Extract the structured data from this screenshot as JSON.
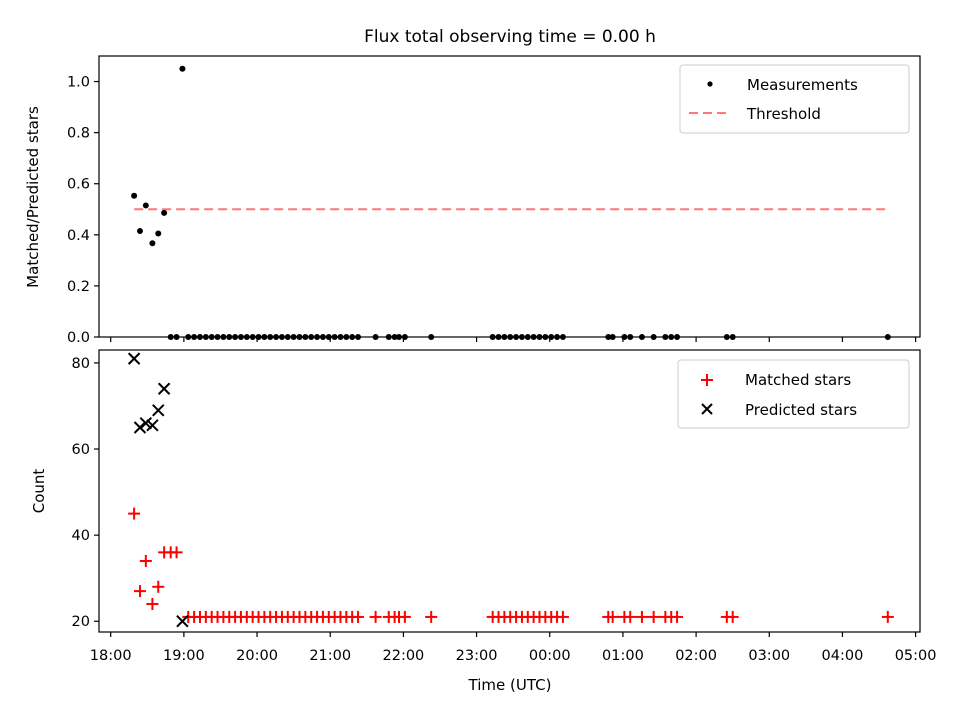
{
  "chart_data": [
    {
      "type": "scatter",
      "title": "Flux total observing time = 0.00 h",
      "xlabel": "",
      "ylabel": "Matched/Predicted stars",
      "ylim": [
        0,
        1.1
      ],
      "yticks": [
        0.0,
        0.2,
        0.4,
        0.6,
        0.8,
        1.0
      ],
      "ytick_labels": [
        "0.0",
        "0.2",
        "0.4",
        "0.6",
        "0.8",
        "1.0"
      ],
      "x_unit": "hours since 18:00 UTC",
      "legend": {
        "position": "top-right",
        "entries": [
          {
            "label": "Measurements",
            "marker": "dot",
            "color": "#000000"
          },
          {
            "label": "Threshold",
            "marker": "dashed-line",
            "color": "#ff7777"
          }
        ]
      },
      "threshold": {
        "y": 0.5,
        "x_start": 0.32,
        "x_end": 10.62,
        "color": "#ff7777"
      },
      "measurements": [
        {
          "x": 0.32,
          "y": 0.553
        },
        {
          "x": 0.4,
          "y": 0.415
        },
        {
          "x": 0.48,
          "y": 0.515
        },
        {
          "x": 0.57,
          "y": 0.367
        },
        {
          "x": 0.65,
          "y": 0.405
        },
        {
          "x": 0.73,
          "y": 0.486
        },
        {
          "x": 0.98,
          "y": 1.05
        }
      ],
      "zero_points_x": [
        0.82,
        0.9,
        1.06,
        1.14,
        1.22,
        1.3,
        1.38,
        1.46,
        1.54,
        1.62,
        1.7,
        1.78,
        1.86,
        1.94,
        2.02,
        2.1,
        2.18,
        2.26,
        2.34,
        2.42,
        2.5,
        2.58,
        2.66,
        2.74,
        2.82,
        2.9,
        2.98,
        3.06,
        3.14,
        3.22,
        3.3,
        3.38,
        3.62,
        3.8,
        3.88,
        3.94,
        4.02,
        4.38,
        5.22,
        5.3,
        5.38,
        5.46,
        5.54,
        5.62,
        5.7,
        5.78,
        5.86,
        5.94,
        6.02,
        6.1,
        6.18,
        6.8,
        6.86,
        7.02,
        7.1,
        7.26,
        7.42,
        7.58,
        7.66,
        7.74,
        8.42,
        8.5,
        10.62
      ]
    },
    {
      "type": "scatter",
      "title": "",
      "xlabel": "Time (UTC)",
      "ylabel": "Count",
      "ylim": [
        17.5,
        83
      ],
      "xlim": [
        -0.16,
        11.06
      ],
      "yticks": [
        20,
        40,
        60,
        80
      ],
      "ytick_labels": [
        "20",
        "40",
        "60",
        "80"
      ],
      "xticks": [
        0,
        1,
        2,
        3,
        4,
        5,
        6,
        7,
        8,
        9,
        10,
        11
      ],
      "xtick_labels": [
        "18:00",
        "19:00",
        "20:00",
        "21:00",
        "22:00",
        "23:00",
        "00:00",
        "01:00",
        "02:00",
        "03:00",
        "04:00",
        "05:00"
      ],
      "legend": {
        "position": "top-right",
        "entries": [
          {
            "label": "Matched stars",
            "marker": "plus",
            "color": "#ff0000"
          },
          {
            "label": "Predicted stars",
            "marker": "x",
            "color": "#000000"
          }
        ]
      },
      "matched": [
        {
          "x": 0.32,
          "y": 45
        },
        {
          "x": 0.4,
          "y": 27
        },
        {
          "x": 0.48,
          "y": 34
        },
        {
          "x": 0.57,
          "y": 24
        },
        {
          "x": 0.65,
          "y": 28
        },
        {
          "x": 0.73,
          "y": 36
        },
        {
          "x": 0.82,
          "y": 36
        },
        {
          "x": 0.9,
          "y": 36
        }
      ],
      "matched_baseline_y": 21,
      "matched_baseline_x": [
        1.06,
        1.14,
        1.22,
        1.3,
        1.38,
        1.46,
        1.54,
        1.62,
        1.7,
        1.78,
        1.86,
        1.94,
        2.02,
        2.1,
        2.18,
        2.26,
        2.34,
        2.42,
        2.5,
        2.58,
        2.66,
        2.74,
        2.82,
        2.9,
        2.98,
        3.06,
        3.14,
        3.22,
        3.3,
        3.38,
        3.62,
        3.8,
        3.88,
        3.94,
        4.02,
        4.38,
        5.22,
        5.3,
        5.38,
        5.46,
        5.54,
        5.62,
        5.7,
        5.78,
        5.86,
        5.94,
        6.02,
        6.1,
        6.18,
        6.8,
        6.86,
        7.02,
        7.1,
        7.26,
        7.42,
        7.58,
        7.66,
        7.74,
        8.42,
        8.5,
        10.62
      ],
      "predicted": [
        {
          "x": 0.32,
          "y": 81
        },
        {
          "x": 0.4,
          "y": 65
        },
        {
          "x": 0.48,
          "y": 66
        },
        {
          "x": 0.57,
          "y": 65.5
        },
        {
          "x": 0.65,
          "y": 69
        },
        {
          "x": 0.73,
          "y": 74
        },
        {
          "x": 0.98,
          "y": 20
        }
      ]
    }
  ]
}
